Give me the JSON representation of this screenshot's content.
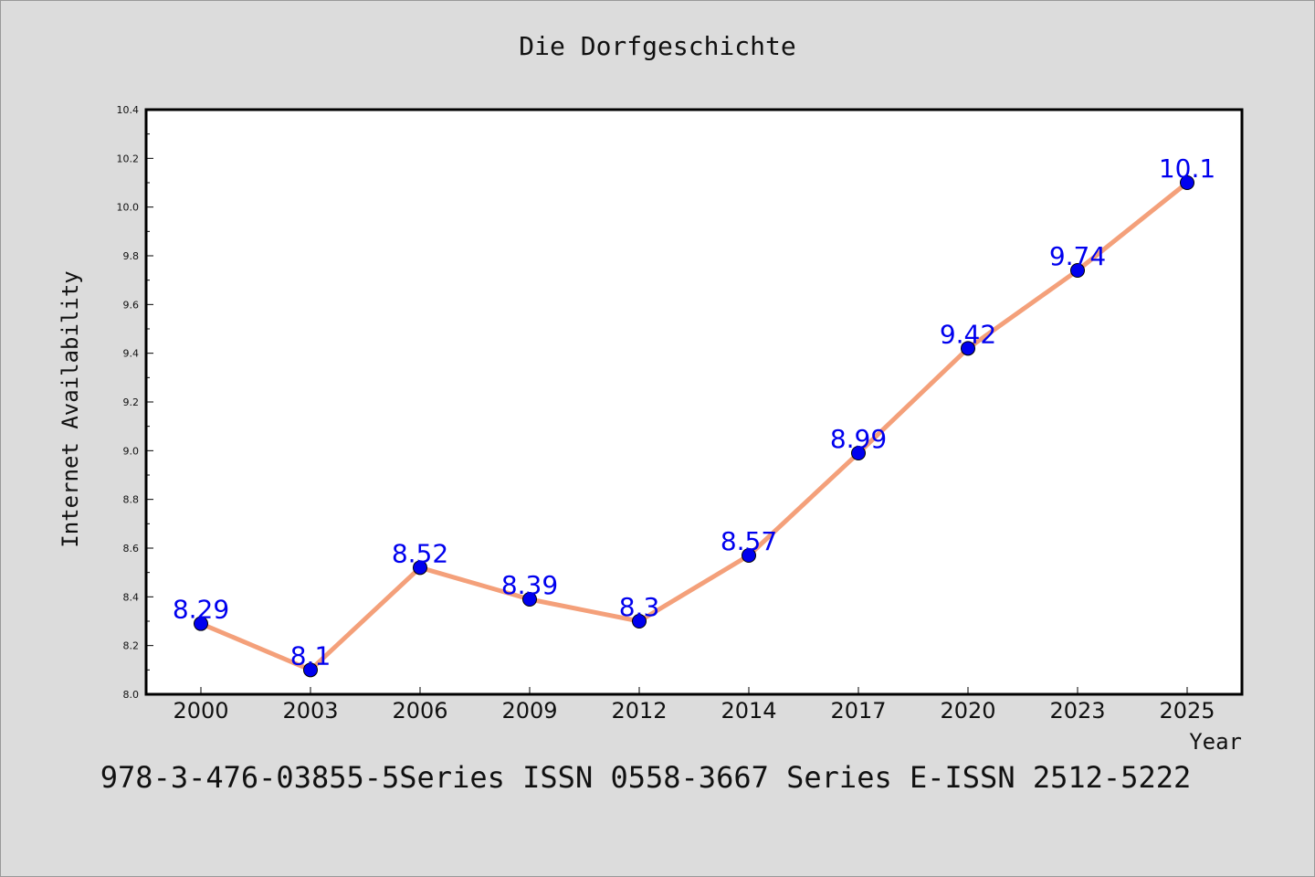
{
  "chart_data": {
    "type": "line",
    "title": "Die Dorfgeschichte",
    "xlabel": "Year",
    "ylabel": "Internet Availability",
    "categories": [
      "2000",
      "2003",
      "2006",
      "2009",
      "2012",
      "2014",
      "2017",
      "2020",
      "2023",
      "2025"
    ],
    "series": [
      {
        "values": [
          8.29,
          8.1,
          8.52,
          8.39,
          8.3,
          8.57,
          8.99,
          9.42,
          9.74,
          10.1
        ],
        "labels": [
          "8.29",
          "8.1",
          "8.52",
          "8.39",
          "8.3",
          "8.57",
          "8.99",
          "9.42",
          "9.74",
          "10.1"
        ],
        "line_color": "#f4a07a",
        "marker_color": "#0000ee"
      }
    ],
    "ylim": [
      8.0,
      10.4
    ],
    "yticks": [
      "8.0",
      "8.2",
      "8.4",
      "8.6",
      "8.8",
      "9.0",
      "9.2",
      "9.4",
      "9.6",
      "9.8",
      "10.0",
      "10.2",
      "10.4"
    ],
    "grid": false,
    "legend": "none"
  },
  "footer": {
    "text": "978-3-476-03855-5Series ISSN 0558-3667 Series E-ISSN 2512-5222"
  }
}
